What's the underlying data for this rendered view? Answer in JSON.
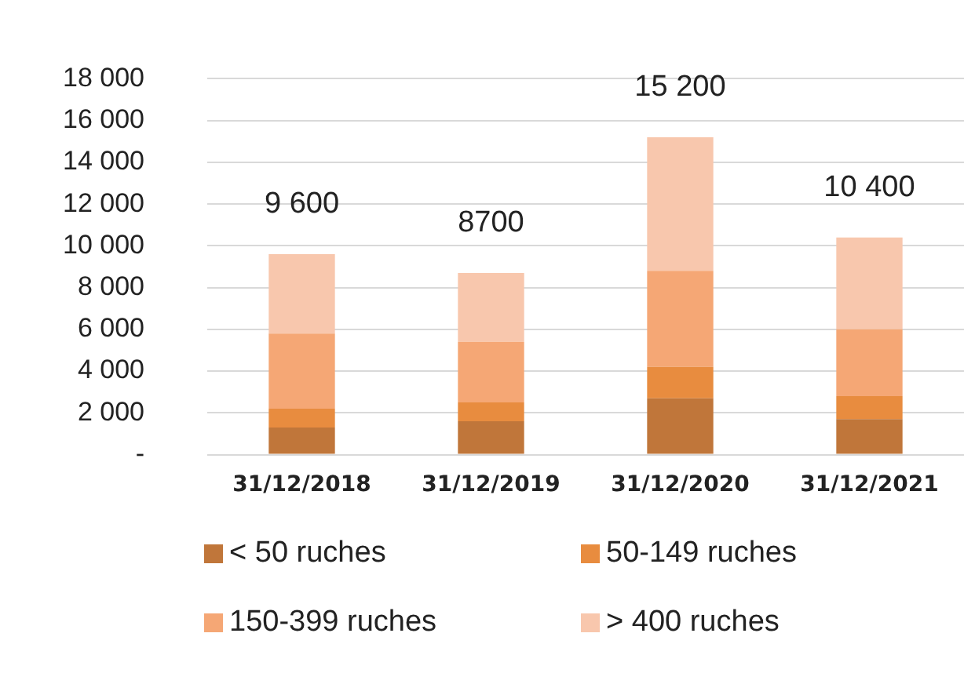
{
  "chart_data": {
    "type": "bar",
    "stacked": true,
    "categories": [
      "31/12/2018",
      "31/12/2019",
      "31/12/2020",
      "31/12/2021"
    ],
    "series": [
      {
        "name": "< 50 ruches",
        "color": "#c0763a",
        "values": [
          1300,
          1600,
          2700,
          1700
        ]
      },
      {
        "name": "50-149 ruches",
        "color": "#e88c3f",
        "values": [
          900,
          900,
          1500,
          1100
        ]
      },
      {
        "name": "150-399 ruches",
        "color": "#f5a775",
        "values": [
          3600,
          2900,
          4600,
          3200
        ]
      },
      {
        "name": "> 400 ruches",
        "color": "#f8c7ad",
        "values": [
          3800,
          3300,
          6400,
          4400
        ]
      }
    ],
    "totals": [
      "9 600",
      "8700",
      "15 200",
      "10 400"
    ],
    "ylim": [
      0,
      18000
    ],
    "yticks": [
      {
        "value": 0,
        "label": "-"
      },
      {
        "value": 2000,
        "label": "2 000"
      },
      {
        "value": 4000,
        "label": "4 000"
      },
      {
        "value": 6000,
        "label": "6 000"
      },
      {
        "value": 8000,
        "label": "8 000"
      },
      {
        "value": 10000,
        "label": "10 000"
      },
      {
        "value": 12000,
        "label": "12 000"
      },
      {
        "value": 14000,
        "label": "14 000"
      },
      {
        "value": 16000,
        "label": "16 000"
      },
      {
        "value": 18000,
        "label": "18 000"
      }
    ],
    "grid": "y",
    "legend": "bottom"
  }
}
